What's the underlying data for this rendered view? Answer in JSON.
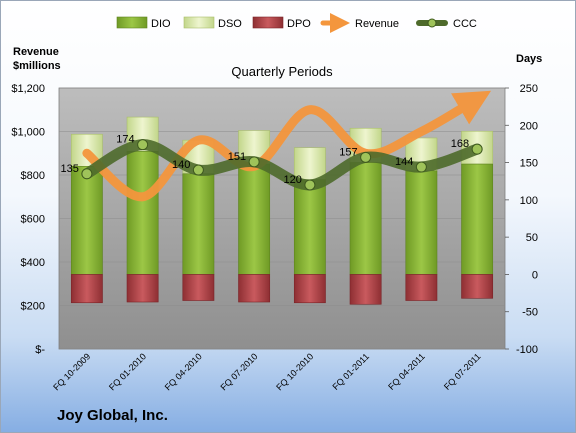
{
  "chart_data": {
    "type": "bar",
    "title": "Quarterly Periods",
    "company": "Joy Global, Inc.",
    "ylabel_left": [
      "Revenue",
      "$millions"
    ],
    "ylabel_right": "Days",
    "ylim_left": [
      0,
      1200
    ],
    "ylim_right": [
      -100,
      250
    ],
    "yticks_left": [
      "$-",
      "$200",
      "$400",
      "$600",
      "$800",
      "$1,000",
      "$1,200"
    ],
    "yticks_right": [
      "-100",
      "-50",
      "0",
      "50",
      "100",
      "150",
      "200",
      "250"
    ],
    "categories": [
      "FQ 10-2009",
      "FQ 01-2010",
      "FQ 04-2010",
      "FQ 07-2010",
      "FQ 10-2010",
      "FQ 01-2011",
      "FQ 04-2011",
      "FQ 07-2011"
    ],
    "legend": [
      "DIO",
      "DSO",
      "DPO",
      "Revenue",
      "CCC"
    ],
    "colors": {
      "DIO": "#8fb83a",
      "DSO": "#d6e6a4",
      "DPO": "#b5484c",
      "Revenue": "#f4963d",
      "CCC": "#4e6a2b",
      "plot_bg": "#a6a6a6"
    },
    "series": [
      {
        "name": "DIO",
        "axis": "right",
        "values": [
          145,
          165,
          135,
          148,
          127,
          150,
          139,
          148
        ]
      },
      {
        "name": "DSO",
        "axis": "right",
        "values": [
          43,
          46,
          45,
          45,
          43,
          46,
          44,
          44
        ]
      },
      {
        "name": "DPO",
        "axis": "right",
        "values": [
          -38,
          -37,
          -35,
          -37,
          -38,
          -40,
          -35,
          -32
        ]
      },
      {
        "name": "Revenue",
        "axis": "left",
        "values": [
          900,
          700,
          960,
          840,
          1100,
          900,
          1000,
          1150
        ]
      },
      {
        "name": "CCC",
        "axis": "right",
        "values": [
          135,
          174,
          140,
          151,
          120,
          157,
          144,
          168
        ]
      }
    ]
  }
}
